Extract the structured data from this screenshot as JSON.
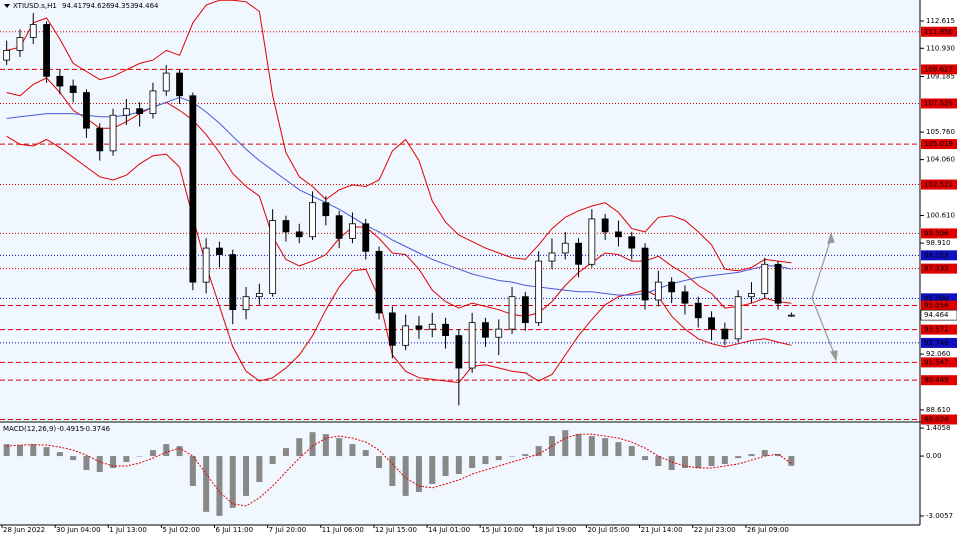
{
  "chart_data": {
    "type": "candlestick",
    "symbol": "XTIUSD.s,H1",
    "ylim": [
      87.93,
      113.91
    ],
    "yticks": [
      112.615,
      {
        "value": 110.93,
        "label": "110.930"
      },
      109.185,
      {
        "value": 105.76,
        "label": "105.760"
      },
      {
        "value": 104.06,
        "label": "104.060"
      },
      {
        "value": 100.61,
        "label": "100.610"
      },
      {
        "value": 98.91,
        "label": "98.910"
      },
      {
        "value": 92.06,
        "label": "92.060"
      },
      {
        "value": 88.61,
        "label": "88.610"
      }
    ],
    "levels": [
      {
        "value": 111.95,
        "label": "111.950",
        "color": "#e00000",
        "dash": "1,2"
      },
      {
        "value": 109.627,
        "color": "#e00000",
        "dash": "5,3"
      },
      {
        "value": 107.525,
        "color": "#e00000",
        "dash": "1,2"
      },
      {
        "value": 105.019,
        "color": "#e00000",
        "dash": "5,3"
      },
      {
        "value": 102.521,
        "color": "#e00000",
        "dash": "1,2"
      },
      {
        "value": 99.506,
        "color": "#e00000",
        "dash": "1,2"
      },
      {
        "value": 98.153,
        "color": "#1010c0",
        "dash": "1,2"
      },
      {
        "value": 97.332,
        "color": "#e00000",
        "dash": "1,2"
      },
      {
        "value": 95.5,
        "label": "95.500",
        "color": "#1010c0",
        "dash": "1,2"
      },
      {
        "value": 95.054,
        "color": "#e00000",
        "dash": "5,3"
      },
      {
        "value": 93.571,
        "color": "#e00000",
        "dash": "5,3"
      },
      {
        "value": 92.748,
        "color": "#1010c0",
        "dash": "1,2"
      },
      {
        "value": 91.547,
        "color": "#e00000",
        "dash": "5,3"
      },
      {
        "value": 90.449,
        "color": "#e00000",
        "dash": "5,3"
      },
      {
        "value": 88.024,
        "color": "#e00000",
        "dash": "5,3"
      }
    ],
    "time_labels": [
      "28 Jun 2022",
      "30 Jun 04:00",
      "1 Jul 13:00",
      "5 Jul 02:00",
      "6 Jul 11:00",
      "7 Jul 20:00",
      "11 Jul 06:00",
      "12 Jul 15:00",
      "14 Jul 01:00",
      "15 Jul 10:00",
      "18 Jul 19:00",
      "20 Jul 05:00",
      "21 Jul 14:00",
      "22 Jul 23:00",
      "26 Jul 09:00"
    ],
    "open": [
      110.2,
      110.8,
      111.6,
      112.4,
      109.2,
      108.6,
      108.2,
      106.0,
      104.6,
      106.8,
      107.2,
      106.9,
      108.3,
      109.4,
      108.0,
      96.5,
      98.6,
      98.2,
      94.8,
      95.6,
      95.8,
      100.3,
      99.6,
      99.3,
      101.4,
      100.6,
      99.2,
      100.1,
      98.4,
      94.6,
      92.6,
      93.8,
      93.6,
      93.9,
      93.2,
      91.2,
      94.0,
      93.1,
      93.6,
      95.6,
      94.0,
      97.8,
      98.3,
      98.9,
      97.6,
      100.4,
      99.6,
      99.3,
      98.6,
      95.4,
      96.5,
      95.9,
      95.2,
      94.3,
      93.6,
      93.0,
      95.6,
      95.8,
      97.6,
      94.417
    ],
    "high": [
      111.4,
      112.1,
      113.1,
      112.6,
      109.6,
      109.0,
      108.4,
      106.3,
      107.2,
      107.8,
      107.6,
      108.8,
      109.9,
      109.6,
      108.2,
      99.2,
      99.0,
      98.5,
      96.2,
      96.4,
      101.0,
      100.6,
      100.1,
      102.1,
      101.8,
      100.9,
      100.8,
      100.4,
      98.7,
      95.0,
      94.5,
      94.4,
      94.6,
      94.3,
      93.6,
      94.6,
      94.3,
      94.2,
      96.2,
      95.9,
      98.4,
      99.2,
      99.6,
      99.2,
      101.0,
      100.7,
      100.3,
      99.6,
      98.9,
      97.2,
      96.8,
      96.3,
      95.6,
      94.7,
      94.0,
      96.0,
      96.5,
      98.0,
      97.8,
      94.626
    ],
    "low": [
      109.9,
      110.4,
      111.2,
      108.8,
      108.1,
      107.6,
      105.4,
      104.0,
      104.3,
      106.2,
      106.1,
      106.6,
      108.0,
      107.5,
      96.0,
      95.8,
      97.4,
      93.9,
      94.2,
      95.1,
      95.6,
      99.0,
      98.9,
      99.1,
      100.0,
      98.6,
      98.9,
      97.9,
      94.2,
      91.8,
      92.3,
      93.0,
      93.1,
      92.4,
      88.9,
      90.9,
      92.5,
      92.0,
      93.3,
      93.5,
      93.8,
      97.3,
      97.9,
      96.8,
      97.4,
      99.1,
      98.7,
      97.9,
      94.8,
      95.0,
      95.2,
      94.5,
      93.7,
      92.9,
      92.6,
      92.8,
      95.2,
      95.5,
      94.8,
      94.353
    ],
    "close": [
      110.8,
      111.6,
      112.4,
      109.2,
      108.6,
      108.2,
      106.0,
      104.6,
      106.8,
      107.2,
      106.9,
      108.3,
      109.4,
      108.0,
      96.5,
      98.6,
      98.2,
      94.8,
      95.6,
      95.8,
      100.3,
      99.6,
      99.3,
      101.4,
      100.6,
      99.2,
      100.1,
      98.4,
      94.6,
      92.6,
      93.8,
      93.6,
      93.9,
      93.2,
      91.2,
      94.0,
      93.1,
      93.6,
      95.6,
      94.0,
      97.8,
      98.3,
      98.9,
      97.6,
      100.4,
      99.6,
      99.3,
      98.6,
      95.4,
      96.5,
      95.9,
      95.2,
      94.3,
      93.6,
      93.0,
      95.6,
      95.8,
      97.6,
      95.2,
      94.464
    ],
    "overlays": [
      {
        "color": "#e00000",
        "values": [
          110.8,
          111.0,
          112.5,
          112.8,
          111.5,
          110.0,
          109.5,
          109.0,
          109.2,
          109.6,
          110.0,
          110.2,
          110.8,
          110.5,
          112.5,
          113.6,
          113.9,
          113.9,
          113.8,
          113.2,
          108.0,
          104.5,
          103.0,
          102.4,
          101.6,
          102.2,
          102.5,
          102.4,
          102.8,
          104.6,
          105.3,
          104.0,
          101.5,
          100.2,
          99.4,
          99.0,
          98.6,
          98.3,
          98.0,
          97.9,
          98.8,
          99.8,
          100.5,
          100.9,
          101.2,
          101.4,
          100.8,
          99.8,
          99.6,
          100.5,
          100.6,
          100.3,
          99.6,
          98.8,
          97.3,
          97.2,
          97.4,
          97.9,
          97.8,
          97.7
        ]
      },
      {
        "color": "#e00000",
        "values": [
          108.2,
          108.0,
          108.7,
          109.1,
          108.2,
          107.1,
          106.6,
          106.0,
          106.0,
          106.4,
          106.9,
          107.3,
          107.6,
          107.1,
          106.5,
          105.6,
          104.5,
          103.2,
          102.4,
          101.8,
          99.3,
          97.9,
          97.5,
          97.8,
          98.2,
          99.2,
          99.9,
          99.9,
          99.2,
          98.3,
          98.2,
          97.3,
          96.0,
          95.3,
          94.9,
          95.2,
          95.0,
          94.8,
          94.5,
          94.4,
          94.6,
          95.3,
          96.3,
          97.1,
          97.7,
          98.3,
          98.2,
          97.8,
          97.8,
          98.1,
          97.5,
          97.0,
          96.3,
          95.8,
          94.9,
          95.0,
          95.2,
          95.5,
          95.3,
          95.2
        ]
      },
      {
        "color": "#e00000",
        "values": [
          105.5,
          105.0,
          104.9,
          105.3,
          104.8,
          104.2,
          103.6,
          103.0,
          102.8,
          103.1,
          103.8,
          104.3,
          104.4,
          103.6,
          100.5,
          97.5,
          95.0,
          92.5,
          91.0,
          90.4,
          90.6,
          91.2,
          92.0,
          93.2,
          94.8,
          96.2,
          97.2,
          97.3,
          95.5,
          92.0,
          91.0,
          90.6,
          90.5,
          90.4,
          90.3,
          91.3,
          91.4,
          91.2,
          91.0,
          90.9,
          90.4,
          90.8,
          92.0,
          93.2,
          94.2,
          95.1,
          95.6,
          95.8,
          96.0,
          95.6,
          94.4,
          93.6,
          93.0,
          92.7,
          92.5,
          92.7,
          92.9,
          93.0,
          92.8,
          92.6
        ]
      },
      {
        "color": "#4a5ad8",
        "values": [
          106.6,
          106.7,
          106.8,
          106.9,
          106.9,
          106.9,
          106.8,
          106.7,
          106.7,
          106.8,
          107.0,
          107.3,
          107.6,
          107.9,
          107.6,
          107.0,
          106.3,
          105.5,
          104.7,
          104.0,
          103.4,
          102.8,
          102.2,
          101.8,
          101.4,
          101.0,
          100.5,
          100.0,
          99.6,
          99.1,
          98.7,
          98.3,
          97.9,
          97.6,
          97.3,
          97.0,
          96.8,
          96.6,
          96.5,
          96.3,
          96.2,
          96.1,
          96.0,
          95.9,
          95.9,
          95.8,
          95.7,
          95.7,
          95.8,
          96.1,
          96.4,
          96.6,
          96.8,
          96.9,
          97.0,
          97.1,
          97.3,
          97.5,
          97.5,
          97.3
        ]
      }
    ],
    "macd": {
      "type": "bar",
      "label": "MACD(12,26,9)",
      "y2lim": [
        -3.46,
        1.66
      ],
      "y2ticks": [
        1.4058,
        {
          "value": 0,
          "label": "0.00"
        },
        -3.0057
      ],
      "color": "#888888",
      "signal_color": "#e00000",
      "values": [
        0.6,
        0.55,
        0.6,
        0.45,
        0.2,
        -0.2,
        -0.7,
        -0.8,
        -0.6,
        -0.3,
        0.0,
        0.3,
        0.6,
        0.5,
        -1.5,
        -2.8,
        -3.0,
        -2.6,
        -2.0,
        -1.3,
        -0.4,
        0.4,
        0.9,
        1.2,
        1.1,
        0.9,
        0.6,
        0.3,
        -0.6,
        -1.5,
        -2.0,
        -1.8,
        -1.4,
        -1.0,
        -0.9,
        -0.6,
        -0.4,
        -0.2,
        0.0,
        0.1,
        0.5,
        1.0,
        1.3,
        1.1,
        1.0,
        0.9,
        0.7,
        0.5,
        -0.2,
        -0.5,
        -0.7,
        -0.6,
        -0.6,
        -0.5,
        -0.4,
        -0.1,
        0.1,
        0.3,
        0.1,
        -0.4915
      ],
      "signal": [
        0.5,
        0.55,
        0.57,
        0.55,
        0.45,
        0.3,
        0.05,
        -0.3,
        -0.5,
        -0.5,
        -0.35,
        -0.1,
        0.2,
        0.4,
        0.0,
        -0.9,
        -1.8,
        -2.4,
        -2.5,
        -2.1,
        -1.5,
        -0.8,
        -0.1,
        0.5,
        0.9,
        1.0,
        0.9,
        0.7,
        0.3,
        -0.4,
        -1.1,
        -1.5,
        -1.6,
        -1.4,
        -1.2,
        -0.9,
        -0.7,
        -0.5,
        -0.3,
        -0.1,
        0.1,
        0.5,
        0.9,
        1.1,
        1.1,
        1.0,
        0.9,
        0.7,
        0.4,
        0.0,
        -0.3,
        -0.5,
        -0.6,
        -0.6,
        -0.5,
        -0.4,
        -0.2,
        0.0,
        0.1,
        -0.3746
      ]
    }
  }
}
